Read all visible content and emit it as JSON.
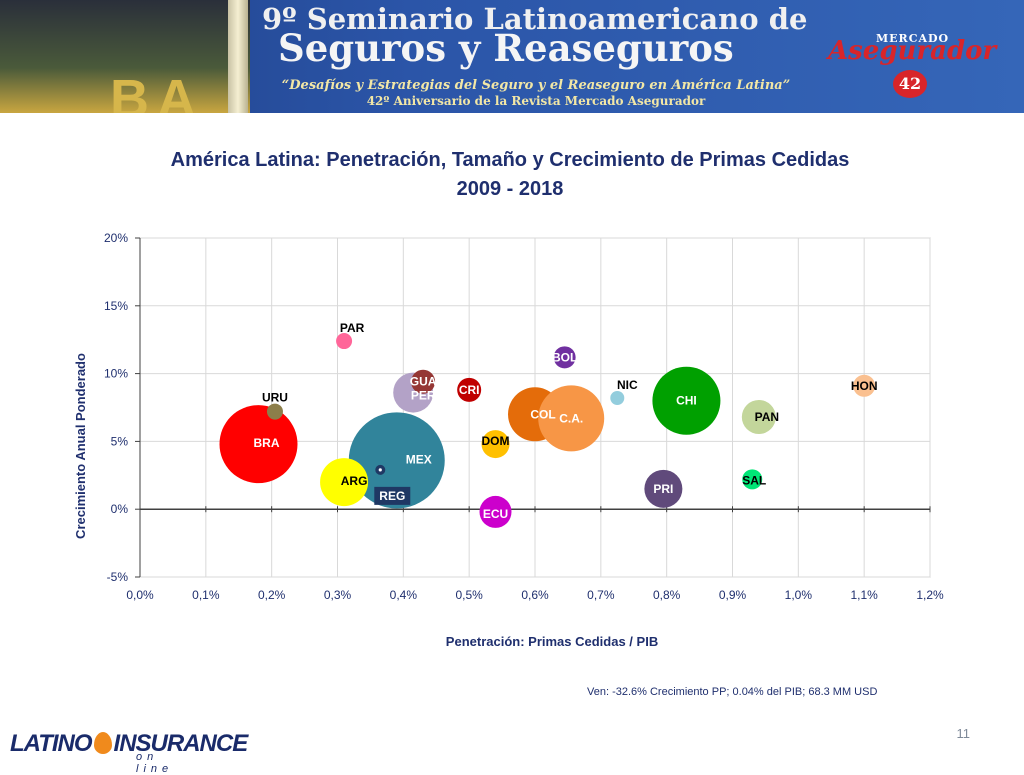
{
  "banner": {
    "line1": "9º Seminario Latinoamericano de",
    "line2": "Seguros y Reaseguros",
    "line3": "“Desafíos y Estrategias del Seguro y el Reaseguro en América Latina”",
    "line4": "42º Aniversario de la Revista Mercado Asegurador",
    "city_letters": "BA",
    "magazine_top": "MERCADO",
    "magazine_name": "Asegurador",
    "anniversary_badge": "42"
  },
  "slide_title_line1": "América Latina: Penetración, Tamaño y Crecimiento de Primas Cedidas",
  "slide_title_line2": "2009 - 2018",
  "chart_data": {
    "type": "bubble",
    "xlabel": "Penetración: Primas Cedidas / PIB",
    "ylabel": "Crecimiento Anual Ponderado",
    "xlim": [
      0.0,
      1.2
    ],
    "ylim": [
      -5,
      20
    ],
    "x_ticks": [
      0.0,
      0.1,
      0.2,
      0.3,
      0.4,
      0.5,
      0.6,
      0.7,
      0.8,
      0.9,
      1.0,
      1.1,
      1.2
    ],
    "x_tick_labels": [
      "0,0%",
      "0,1%",
      "0,2%",
      "0,3%",
      "0,4%",
      "0,5%",
      "0,6%",
      "0,7%",
      "0,8%",
      "0,9%",
      "1,0%",
      "1,1%",
      "1,2%"
    ],
    "y_ticks": [
      -5,
      0,
      5,
      10,
      15,
      20
    ],
    "y_tick_labels": [
      "-5%",
      "0%",
      "5%",
      "10%",
      "15%",
      "20%"
    ],
    "grid": true,
    "series": [
      {
        "name": "BRA",
        "x": 0.18,
        "y": 4.8,
        "r": 39,
        "color": "#ff0000",
        "label_color": "#ffffff",
        "label_dx": 8,
        "label_dy": -1
      },
      {
        "name": "MEX",
        "x": 0.39,
        "y": 3.6,
        "r": 48,
        "color": "#31849b",
        "label_color": "#ffffff",
        "label_dx": 22,
        "label_dy": -1
      },
      {
        "name": "ARG",
        "x": 0.31,
        "y": 2.0,
        "r": 24,
        "color": "#ffff00",
        "label_color": "#000000",
        "label_dx": 10,
        "label_dy": -1
      },
      {
        "name": "REG",
        "x": 0.365,
        "y": 2.9,
        "r": 5,
        "color": "#1f3864",
        "label_color": "#ffffff",
        "label_box": "#1f3864",
        "label_dx": 12,
        "label_dy": 26
      },
      {
        "name": "URU",
        "x": 0.205,
        "y": 7.2,
        "r": 8,
        "color": "#8c7e4a",
        "label_color": "#000000",
        "label_dx": 0,
        "label_dy": -14
      },
      {
        "name": "PAR",
        "x": 0.31,
        "y": 12.4,
        "r": 8,
        "color": "#ff6699",
        "label_color": "#000000",
        "label_dx": 8,
        "label_dy": -13
      },
      {
        "name": "PER",
        "x": 0.415,
        "y": 8.6,
        "r": 20,
        "color": "#b3a2c7",
        "label_color": "#ffffff",
        "label_dx": 10,
        "label_dy": 3
      },
      {
        "name": "GUA",
        "x": 0.43,
        "y": 9.4,
        "r": 12,
        "color": "#953735",
        "label_color": "#ffffff",
        "label_dx": 0,
        "label_dy": 0
      },
      {
        "name": "CRI",
        "x": 0.5,
        "y": 8.8,
        "r": 12,
        "color": "#c00000",
        "label_color": "#ffffff",
        "label_dx": 0,
        "label_dy": 0
      },
      {
        "name": "COL",
        "x": 0.6,
        "y": 7.0,
        "r": 27,
        "color": "#e46c0a",
        "label_color": "#ffffff",
        "label_dx": 8,
        "label_dy": 0
      },
      {
        "name": "C.A.",
        "x": 0.655,
        "y": 6.7,
        "r": 33,
        "color": "#f79646",
        "label_color": "#ffffff",
        "label_dx": 0,
        "label_dy": 0
      },
      {
        "name": "DOM",
        "x": 0.54,
        "y": 4.8,
        "r": 14,
        "color": "#ffc000",
        "label_color": "#000000",
        "label_dx": 0,
        "label_dy": -3
      },
      {
        "name": "BOL",
        "x": 0.645,
        "y": 11.2,
        "r": 11,
        "color": "#7030a0",
        "label_color": "#ffffff",
        "label_dx": 0,
        "label_dy": 0
      },
      {
        "name": "ECU",
        "x": 0.54,
        "y": -0.2,
        "r": 16,
        "color": "#cc00cc",
        "label_color": "#ffffff",
        "label_dx": 0,
        "label_dy": 2
      },
      {
        "name": "NIC",
        "x": 0.725,
        "y": 8.2,
        "r": 7,
        "color": "#93cddd",
        "label_color": "#000000",
        "label_dx": 10,
        "label_dy": -13
      },
      {
        "name": "CHI",
        "x": 0.83,
        "y": 8.0,
        "r": 34,
        "color": "#00a000",
        "label_color": "#ffffff",
        "label_dx": 0,
        "label_dy": 0
      },
      {
        "name": "PRI",
        "x": 0.795,
        "y": 1.5,
        "r": 19,
        "color": "#604a7b",
        "label_color": "#ffffff",
        "label_dx": 0,
        "label_dy": 0
      },
      {
        "name": "PAN",
        "x": 0.94,
        "y": 6.8,
        "r": 17,
        "color": "#c3d69b",
        "label_color": "#000000",
        "label_dx": 8,
        "label_dy": 0
      },
      {
        "name": "SAL",
        "x": 0.93,
        "y": 2.2,
        "r": 10,
        "color": "#00e676",
        "label_color": "#000000",
        "label_dx": 2,
        "label_dy": 1
      },
      {
        "name": "HON",
        "x": 1.1,
        "y": 9.1,
        "r": 11,
        "color": "#fac090",
        "label_color": "#000000",
        "label_dx": 0,
        "label_dy": 0
      }
    ]
  },
  "note": "Ven: -32.6% Crecimiento PP; 0.04% del PIB; 68.3 MM USD",
  "page_number": "11",
  "logo": {
    "part1": "LATINO",
    "part2": "INSURANCE",
    "part3": "on line"
  }
}
